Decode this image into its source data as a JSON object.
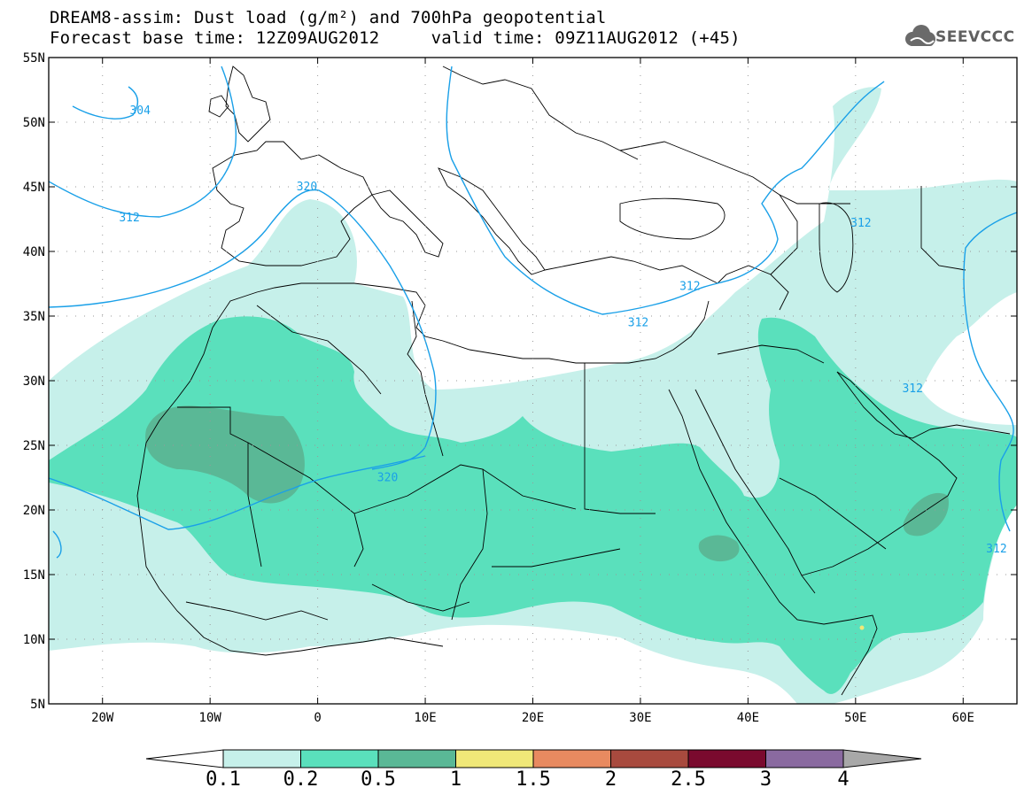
{
  "title_line1": "DREAM8-assim: Dust load (g/m²) and 700hPa geopotential",
  "title_line2": "Forecast base time: 12Z09AUG2012     valid time: 09Z11AUG2012 (+45)",
  "logo": {
    "text": "SEEVCCC",
    "icon": "cloud-icon"
  },
  "map": {
    "lat_range": [
      5,
      55
    ],
    "lon_range": [
      -25,
      65
    ],
    "lat_ticks": [
      {
        "value": 55,
        "label": "55N"
      },
      {
        "value": 50,
        "label": "50N"
      },
      {
        "value": 45,
        "label": "45N"
      },
      {
        "value": 40,
        "label": "40N"
      },
      {
        "value": 35,
        "label": "35N"
      },
      {
        "value": 30,
        "label": "30N"
      },
      {
        "value": 25,
        "label": "25N"
      },
      {
        "value": 20,
        "label": "20N"
      },
      {
        "value": 15,
        "label": "15N"
      },
      {
        "value": 10,
        "label": "10N"
      },
      {
        "value": 5,
        "label": "5N"
      }
    ],
    "lon_ticks": [
      {
        "value": -20,
        "label": "20W"
      },
      {
        "value": -10,
        "label": "10W"
      },
      {
        "value": 0,
        "label": "0"
      },
      {
        "value": 10,
        "label": "10E"
      },
      {
        "value": 20,
        "label": "20E"
      },
      {
        "value": 30,
        "label": "30E"
      },
      {
        "value": 40,
        "label": "40E"
      },
      {
        "value": 50,
        "label": "50E"
      },
      {
        "value": 60,
        "label": "60E"
      }
    ],
    "contour_labels": [
      {
        "text": "304",
        "lon": -16.5,
        "lat": 50.9
      },
      {
        "text": "312",
        "lon": -17.5,
        "lat": 42.6
      },
      {
        "text": "320",
        "lon": -1.0,
        "lat": 45.0
      },
      {
        "text": "312",
        "lon": 50.5,
        "lat": 42.2
      },
      {
        "text": "312",
        "lon": 34.6,
        "lat": 37.3
      },
      {
        "text": "312",
        "lon": 29.8,
        "lat": 34.5
      },
      {
        "text": "312",
        "lon": 55.3,
        "lat": 29.4
      },
      {
        "text": "320",
        "lon": 6.5,
        "lat": 22.5
      },
      {
        "text": "312",
        "lon": 63.1,
        "lat": 17.0
      }
    ],
    "colors": {
      "land_border": "#000000",
      "contour": "#1aa0e8",
      "dust_0_1": "#c6f0ea",
      "dust_0_2": "#5ae0bc",
      "dust_0_5": "#5ab896",
      "dust_1": "#f0e878"
    }
  },
  "colorbar": {
    "labels": [
      "0.1",
      "0.2",
      "0.5",
      "1",
      "1.5",
      "2",
      "2.5",
      "3",
      "4"
    ],
    "colors": [
      "#c6f0ea",
      "#5ae0bc",
      "#5ab896",
      "#f0e878",
      "#e88a60",
      "#a84a3e",
      "#7a0a2e",
      "#8a6aa0"
    ],
    "left_arrow_color": "#ffffff",
    "right_arrow_color": "#a8a8a8"
  }
}
